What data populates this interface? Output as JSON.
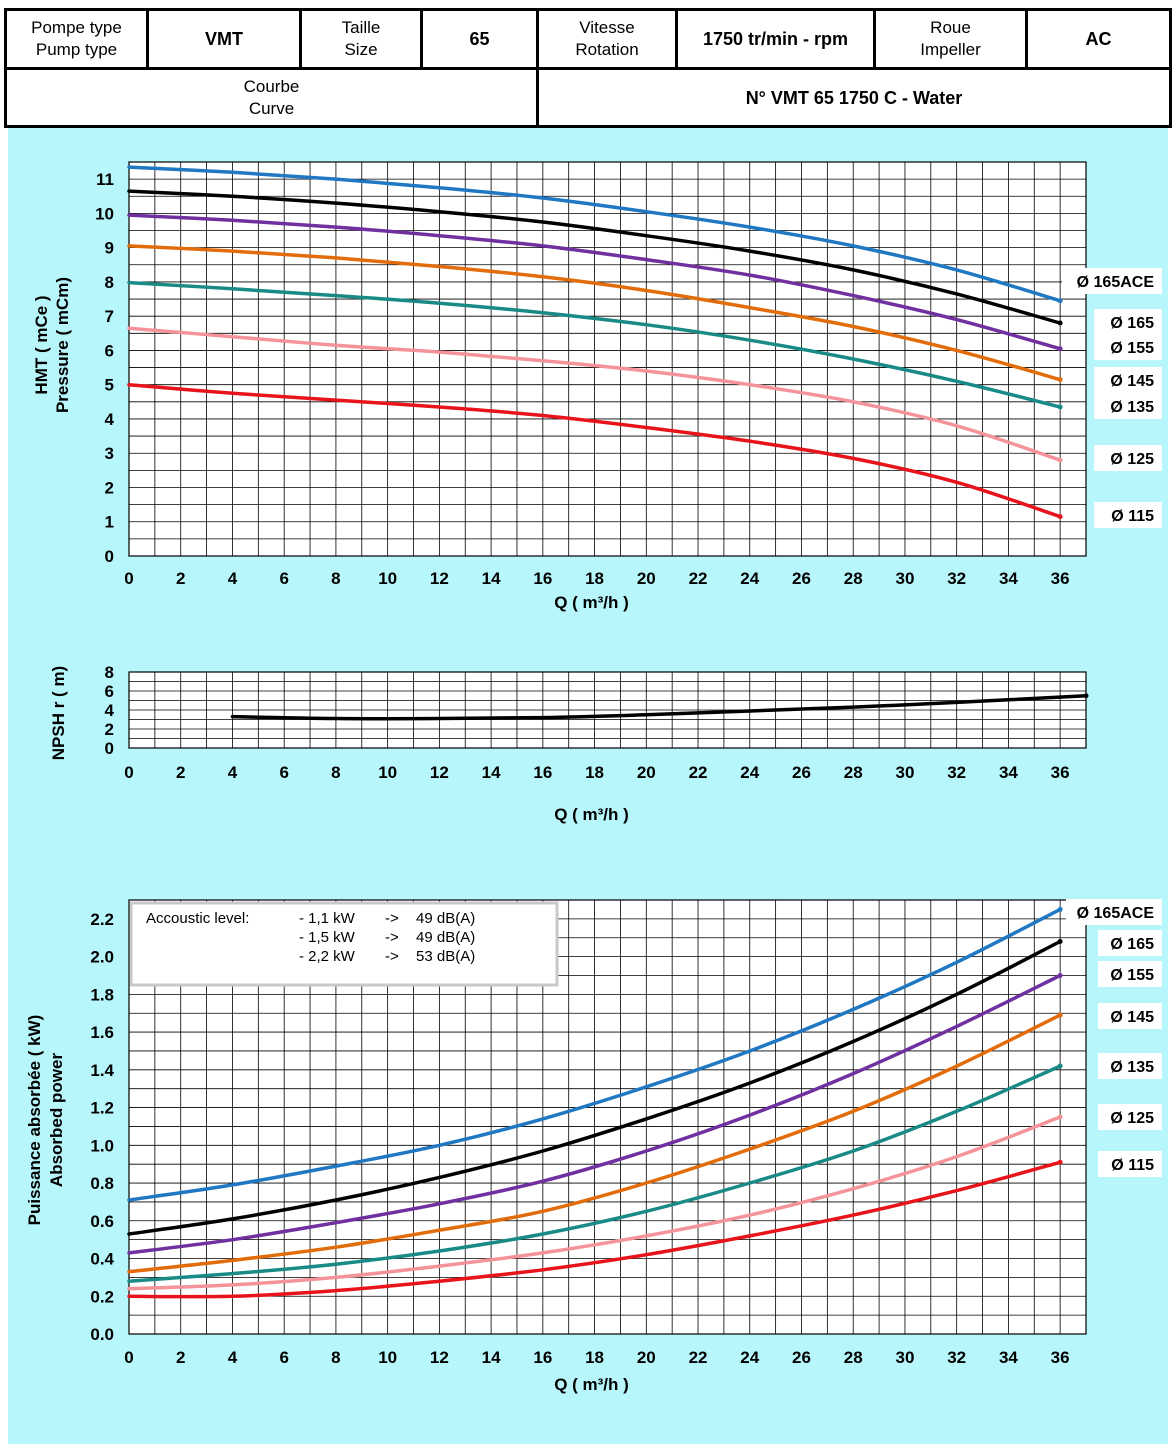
{
  "header": {
    "pump_type_label": [
      "Pompe type",
      "Pump type"
    ],
    "pump_type": "VMT",
    "size_label": [
      "Taille",
      "Size"
    ],
    "size": "65",
    "speed_label": [
      "Vitesse",
      "Rotation"
    ],
    "speed": "1750 tr/min - rpm",
    "impeller_label": [
      "Roue",
      "Impeller"
    ],
    "impeller": "AC",
    "curve_label": [
      "Courbe",
      "Curve"
    ],
    "curve": "N° VMT 65 1750 C - Water"
  },
  "colors": {
    "background": "#b7f7fc",
    "d165ACE": "#1f78c1",
    "d165": "#000000",
    "d155": "#7030a0",
    "d145": "#e36c0a",
    "d135": "#1a8a86",
    "d125": "#f4949a",
    "d115": "#e8141b"
  },
  "acoustic_box": {
    "title": "Accoustic level:",
    "rows": [
      {
        "power": "- 1,1 kW",
        "arrow": "->",
        "level": "49 dB(A)"
      },
      {
        "power": "- 1,5 kW",
        "arrow": "->",
        "level": "49 dB(A)"
      },
      {
        "power": "- 2,2 kW",
        "arrow": "->",
        "level": "53 dB(A)"
      }
    ]
  },
  "chart_data": [
    {
      "type": "line",
      "ylabel": [
        "HMT ( mCe )",
        "Pressure ( mCm)"
      ],
      "xlabel": "Q ( m³/h )",
      "xlim": [
        0,
        37
      ],
      "ylim": [
        0,
        11.5
      ],
      "xticks": [
        "0",
        "2",
        "4",
        "6",
        "8",
        "10",
        "12",
        "14",
        "16",
        "18",
        "20",
        "22",
        "24",
        "26",
        "28",
        "30",
        "32",
        "34",
        "36"
      ],
      "yticks": [
        "0",
        "1",
        "2",
        "3",
        "4",
        "5",
        "6",
        "7",
        "8",
        "9",
        "10",
        "11"
      ],
      "grid": true,
      "legend": "right",
      "series": [
        {
          "name": "Ø 165ACE",
          "color_key": "d165ACE",
          "x": [
            0,
            4,
            8,
            12,
            16,
            20,
            24,
            28,
            32,
            36
          ],
          "y": [
            11.35,
            11.2,
            11.0,
            10.75,
            10.45,
            10.05,
            9.6,
            9.05,
            8.35,
            7.45
          ]
        },
        {
          "name": "Ø 165",
          "color_key": "d165",
          "x": [
            0,
            4,
            8,
            12,
            16,
            20,
            24,
            28,
            32,
            36
          ],
          "y": [
            10.65,
            10.5,
            10.3,
            10.05,
            9.75,
            9.35,
            8.9,
            8.35,
            7.65,
            6.8
          ]
        },
        {
          "name": "Ø 155",
          "color_key": "d155",
          "x": [
            0,
            4,
            8,
            12,
            16,
            20,
            24,
            28,
            32,
            36
          ],
          "y": [
            9.95,
            9.8,
            9.6,
            9.35,
            9.05,
            8.65,
            8.2,
            7.6,
            6.9,
            6.05
          ]
        },
        {
          "name": "Ø 145",
          "color_key": "d145",
          "x": [
            0,
            4,
            8,
            12,
            16,
            20,
            24,
            28,
            32,
            36
          ],
          "y": [
            9.05,
            8.9,
            8.7,
            8.45,
            8.15,
            7.75,
            7.25,
            6.7,
            6.0,
            5.15
          ]
        },
        {
          "name": "Ø 135",
          "color_key": "d135",
          "x": [
            0,
            4,
            8,
            12,
            16,
            20,
            24,
            28,
            32,
            36
          ],
          "y": [
            7.98,
            7.8,
            7.6,
            7.38,
            7.1,
            6.75,
            6.3,
            5.75,
            5.1,
            4.35
          ]
        },
        {
          "name": "Ø 125",
          "color_key": "d125",
          "x": [
            0,
            4,
            8,
            12,
            16,
            20,
            24,
            28,
            32,
            36
          ],
          "y": [
            6.65,
            6.4,
            6.15,
            5.95,
            5.7,
            5.4,
            5.0,
            4.5,
            3.8,
            2.8
          ]
        },
        {
          "name": "Ø 115",
          "color_key": "d115",
          "x": [
            0,
            4,
            8,
            12,
            16,
            20,
            24,
            28,
            32,
            36
          ],
          "y": [
            5.0,
            4.75,
            4.55,
            4.35,
            4.1,
            3.75,
            3.35,
            2.85,
            2.15,
            1.15
          ]
        }
      ]
    },
    {
      "type": "line",
      "ylabel": "NPSH r ( m)",
      "xlabel": "Q ( m³/h )",
      "xlim": [
        0,
        37
      ],
      "ylim": [
        0,
        8
      ],
      "xticks": [
        "0",
        "2",
        "4",
        "6",
        "8",
        "10",
        "12",
        "14",
        "16",
        "18",
        "20",
        "22",
        "24",
        "26",
        "28",
        "30",
        "32",
        "34",
        "36"
      ],
      "yticks": [
        "0",
        "2",
        "4",
        "6",
        "8"
      ],
      "grid": true,
      "series": [
        {
          "name": "",
          "color_key": "d165",
          "x": [
            4,
            8,
            12,
            16,
            20,
            24,
            28,
            32,
            37
          ],
          "y": [
            3.3,
            3.1,
            3.1,
            3.2,
            3.5,
            3.9,
            4.3,
            4.8,
            5.5
          ]
        }
      ]
    },
    {
      "type": "line",
      "ylabel": [
        "Puissance absorbée ( kW)",
        "Absorbed power"
      ],
      "xlabel": "Q ( m³/h )",
      "xlim": [
        0,
        37
      ],
      "ylim": [
        0,
        2.3
      ],
      "xticks": [
        "0",
        "2",
        "4",
        "6",
        "8",
        "10",
        "12",
        "14",
        "16",
        "18",
        "20",
        "22",
        "24",
        "26",
        "28",
        "30",
        "32",
        "34",
        "36"
      ],
      "yticks": [
        "0.0",
        "0.2",
        "0.4",
        "0.6",
        "0.8",
        "1.0",
        "1.2",
        "1.4",
        "1.6",
        "1.8",
        "2.0",
        "2.2"
      ],
      "grid": true,
      "legend": "right",
      "series": [
        {
          "name": "Ø 165ACE",
          "color_key": "d165ACE",
          "x": [
            0,
            4,
            8,
            12,
            16,
            20,
            24,
            28,
            32,
            36
          ],
          "y": [
            0.71,
            0.79,
            0.89,
            1.0,
            1.14,
            1.31,
            1.5,
            1.72,
            1.97,
            2.25
          ]
        },
        {
          "name": "Ø 165",
          "color_key": "d165",
          "x": [
            0,
            4,
            8,
            12,
            16,
            20,
            24,
            28,
            32,
            36
          ],
          "y": [
            0.53,
            0.61,
            0.71,
            0.83,
            0.97,
            1.14,
            1.33,
            1.55,
            1.8,
            2.08
          ]
        },
        {
          "name": "Ø 155",
          "color_key": "d155",
          "x": [
            0,
            4,
            8,
            12,
            16,
            20,
            24,
            28,
            32,
            36
          ],
          "y": [
            0.43,
            0.5,
            0.59,
            0.69,
            0.81,
            0.97,
            1.16,
            1.38,
            1.63,
            1.9
          ]
        },
        {
          "name": "Ø 145",
          "color_key": "d145",
          "x": [
            0,
            4,
            8,
            12,
            16,
            20,
            24,
            28,
            32,
            36
          ],
          "y": [
            0.33,
            0.39,
            0.46,
            0.55,
            0.65,
            0.8,
            0.98,
            1.18,
            1.42,
            1.69
          ]
        },
        {
          "name": "Ø 135",
          "color_key": "d135",
          "x": [
            0,
            4,
            8,
            12,
            16,
            20,
            24,
            28,
            32,
            36
          ],
          "y": [
            0.28,
            0.32,
            0.37,
            0.44,
            0.53,
            0.65,
            0.8,
            0.97,
            1.18,
            1.42
          ]
        },
        {
          "name": "Ø 125",
          "color_key": "d125",
          "x": [
            0,
            4,
            8,
            12,
            16,
            20,
            24,
            28,
            32,
            36
          ],
          "y": [
            0.24,
            0.26,
            0.3,
            0.36,
            0.43,
            0.52,
            0.63,
            0.77,
            0.94,
            1.15
          ]
        },
        {
          "name": "Ø 115",
          "color_key": "d115",
          "x": [
            0,
            4,
            8,
            12,
            16,
            20,
            24,
            28,
            32,
            36
          ],
          "y": [
            0.2,
            0.2,
            0.23,
            0.28,
            0.34,
            0.42,
            0.52,
            0.63,
            0.76,
            0.91
          ]
        }
      ]
    }
  ]
}
